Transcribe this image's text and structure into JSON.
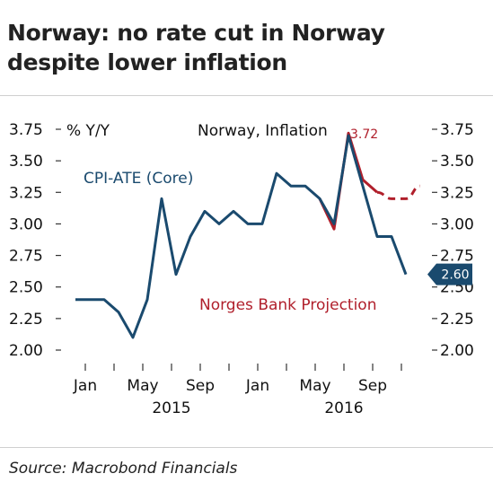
{
  "title": "Norway: no rate cut in Norway despite lower inflation",
  "source": "Source: Macrobond Financials",
  "chart_data": {
    "type": "line",
    "title": "Norway, Inflation",
    "ylabel": "% Y/Y",
    "ylim": [
      2.0,
      3.75
    ],
    "yticks": [
      "2.00",
      "2.25",
      "2.50",
      "2.75",
      "3.00",
      "3.25",
      "3.50",
      "3.75"
    ],
    "grid": false,
    "x_month_labels": [
      {
        "label": "Jan",
        "t": 0
      },
      {
        "label": "May",
        "t": 4
      },
      {
        "label": "Sep",
        "t": 8
      },
      {
        "label": "Jan",
        "t": 12
      },
      {
        "label": "May",
        "t": 16
      },
      {
        "label": "Sep",
        "t": 20
      }
    ],
    "x_year_labels": [
      {
        "label": "2015",
        "t": 6
      },
      {
        "label": "2016",
        "t": 18
      }
    ],
    "series": [
      {
        "name": "CPI-ATE (Core)",
        "color": "#1a4a6e",
        "x": [
          "2014-12",
          "2015-01",
          "2015-02",
          "2015-03",
          "2015-04",
          "2015-05",
          "2015-06",
          "2015-07",
          "2015-08",
          "2015-09",
          "2015-10",
          "2015-11",
          "2015-12",
          "2016-01",
          "2016-02",
          "2016-03",
          "2016-04",
          "2016-05",
          "2016-06",
          "2016-07",
          "2016-08",
          "2016-09",
          "2016-10",
          "2016-11"
        ],
        "values": [
          2.4,
          2.4,
          2.4,
          2.3,
          2.1,
          2.4,
          3.2,
          2.6,
          2.9,
          3.1,
          3.0,
          3.1,
          3.0,
          3.0,
          3.4,
          3.3,
          3.3,
          3.2,
          3.0,
          3.7,
          3.3,
          2.9,
          2.9,
          2.6
        ]
      },
      {
        "name": "Norges Bank Projection",
        "color": "#b01f2b",
        "dashed_from": "2016-09",
        "x": [
          "2016-05",
          "2016-06",
          "2016-07",
          "2016-08",
          "2016-09",
          "2016-10",
          "2016-11",
          "2016-12"
        ],
        "values": [
          3.2,
          2.96,
          3.72,
          3.35,
          3.25,
          3.2,
          3.2,
          3.3
        ]
      }
    ],
    "annotations": [
      {
        "text": "3.72",
        "series": "Norges Bank Projection",
        "color": "#b01f2b"
      },
      {
        "text": "2.60",
        "series": "CPI-ATE (Core)",
        "color": "#1a4a6e"
      }
    ]
  }
}
